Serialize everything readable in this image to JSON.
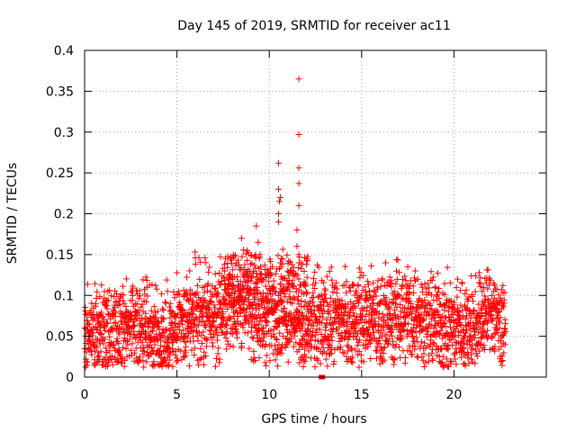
{
  "chart_data": {
    "type": "scatter",
    "title": "Day 145 of 2019, SRMTID for receiver ac11",
    "xlabel": "GPS time / hours",
    "ylabel": "SRMTID / TECUs",
    "xlim": [
      0,
      25
    ],
    "ylim": [
      0,
      0.4
    ],
    "xticks": [
      0,
      5,
      10,
      15,
      20
    ],
    "yticks": [
      0,
      0.05,
      0.1,
      0.15,
      0.2,
      0.25,
      0.3,
      0.35,
      0.4
    ],
    "xtick_labels": [
      "0",
      "5",
      "10",
      "15",
      "20"
    ],
    "ytick_labels": [
      "0",
      "0.05",
      "0.1",
      "0.15",
      "0.2",
      "0.25",
      "0.3",
      "0.35",
      "0.4"
    ],
    "grid": true,
    "marker": "+",
    "color": "#ff0000",
    "x_range_data": [
      0,
      22.8
    ],
    "baseline_profile": [
      {
        "x": 0.0,
        "y": 0.05
      },
      {
        "x": 1.0,
        "y": 0.055
      },
      {
        "x": 1.8,
        "y": 0.045
      },
      {
        "x": 2.5,
        "y": 0.07
      },
      {
        "x": 3.3,
        "y": 0.065
      },
      {
        "x": 4.0,
        "y": 0.05
      },
      {
        "x": 5.0,
        "y": 0.055
      },
      {
        "x": 6.0,
        "y": 0.08
      },
      {
        "x": 7.0,
        "y": 0.075
      },
      {
        "x": 8.0,
        "y": 0.095
      },
      {
        "x": 9.0,
        "y": 0.085
      },
      {
        "x": 10.0,
        "y": 0.075
      },
      {
        "x": 11.0,
        "y": 0.085
      },
      {
        "x": 12.0,
        "y": 0.06
      },
      {
        "x": 13.0,
        "y": 0.065
      },
      {
        "x": 14.0,
        "y": 0.07
      },
      {
        "x": 15.0,
        "y": 0.075
      },
      {
        "x": 16.0,
        "y": 0.065
      },
      {
        "x": 17.0,
        "y": 0.08
      },
      {
        "x": 18.0,
        "y": 0.075
      },
      {
        "x": 19.0,
        "y": 0.065
      },
      {
        "x": 20.0,
        "y": 0.06
      },
      {
        "x": 21.0,
        "y": 0.065
      },
      {
        "x": 22.0,
        "y": 0.085
      },
      {
        "x": 22.8,
        "y": 0.06
      }
    ],
    "outliers": [
      {
        "x": 8.5,
        "y": 0.17
      },
      {
        "x": 8.8,
        "y": 0.155
      },
      {
        "x": 9.3,
        "y": 0.185
      },
      {
        "x": 9.4,
        "y": 0.165
      },
      {
        "x": 9.5,
        "y": 0.15
      },
      {
        "x": 10.5,
        "y": 0.262
      },
      {
        "x": 10.5,
        "y": 0.23
      },
      {
        "x": 10.55,
        "y": 0.215
      },
      {
        "x": 10.6,
        "y": 0.22
      },
      {
        "x": 10.5,
        "y": 0.2
      },
      {
        "x": 10.5,
        "y": 0.19
      },
      {
        "x": 10.6,
        "y": 0.14
      },
      {
        "x": 11.6,
        "y": 0.365
      },
      {
        "x": 11.6,
        "y": 0.297
      },
      {
        "x": 11.6,
        "y": 0.256
      },
      {
        "x": 11.6,
        "y": 0.237
      },
      {
        "x": 11.6,
        "y": 0.21
      },
      {
        "x": 11.5,
        "y": 0.18
      },
      {
        "x": 11.5,
        "y": 0.16
      },
      {
        "x": 11.6,
        "y": 0.15
      },
      {
        "x": 11.7,
        "y": 0.14
      },
      {
        "x": 12.6,
        "y": 0.137
      },
      {
        "x": 16.3,
        "y": 0.14
      },
      {
        "x": 17.5,
        "y": 0.135
      },
      {
        "x": 17.9,
        "y": 0.13
      },
      {
        "x": 20.2,
        "y": 0.12
      }
    ],
    "zero_points": [
      {
        "x": 12.8,
        "y": 0.0
      },
      {
        "x": 12.85,
        "y": 0.0
      },
      {
        "x": 12.9,
        "y": 0.0
      }
    ]
  }
}
